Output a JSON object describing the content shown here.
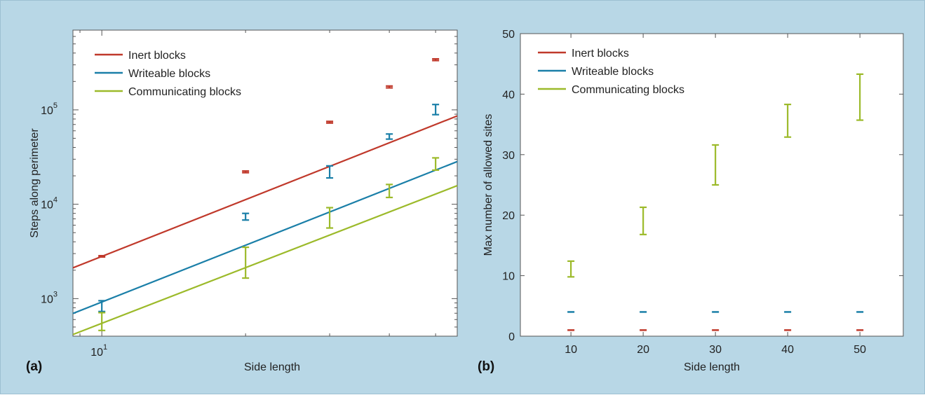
{
  "colors": {
    "background": "#b8d7e6",
    "inert": "#c0392b",
    "writeable": "#1a7fa8",
    "communicating": "#9cba2a"
  },
  "chart_data": [
    {
      "type": "line",
      "panel_label": "(a)",
      "xlabel": "Side length",
      "ylabel": "Steps along perimeter",
      "xscale": "log",
      "yscale": "log",
      "xlim": [
        8.7,
        55.5
      ],
      "ylim": [
        400,
        700000
      ],
      "x_tick_labels": [
        {
          "base": "10",
          "exp": "1",
          "value": 10
        }
      ],
      "y_tick_labels": [
        {
          "base": "10",
          "exp": "3",
          "value": 1000
        },
        {
          "base": "10",
          "exp": "4",
          "value": 10000
        },
        {
          "base": "10",
          "exp": "5",
          "value": 100000
        }
      ],
      "legend_position": "top-left",
      "series": [
        {
          "name": "Inert blocks",
          "color": "#c0392b",
          "fit": {
            "a": 28.0,
            "b": 2.0
          },
          "points": [
            {
              "x": 10,
              "y": 2800,
              "lo": 2760,
              "hi": 2850
            },
            {
              "x": 20,
              "y": 22000,
              "lo": 21600,
              "hi": 22500
            },
            {
              "x": 30,
              "y": 74000,
              "lo": 72500,
              "hi": 75500
            },
            {
              "x": 40,
              "y": 175000,
              "lo": 171000,
              "hi": 179000
            },
            {
              "x": 50,
              "y": 340000,
              "lo": 333000,
              "hi": 347000
            }
          ]
        },
        {
          "name": "Writeable blocks",
          "color": "#1a7fa8",
          "fit": {
            "a": 9.2,
            "b": 2.0
          },
          "points": [
            {
              "x": 10,
              "y": 840,
              "lo": 730,
              "hi": 950
            },
            {
              "x": 20,
              "y": 7300,
              "lo": 6800,
              "hi": 8000
            },
            {
              "x": 30,
              "y": 22500,
              "lo": 19000,
              "hi": 25500
            },
            {
              "x": 40,
              "y": 52000,
              "lo": 49000,
              "hi": 55500
            },
            {
              "x": 50,
              "y": 100000,
              "lo": 89000,
              "hi": 114000
            }
          ]
        },
        {
          "name": "Communicating blocks",
          "color": "#9cba2a",
          "fit": {
            "a": 6.0,
            "b": 1.96
          },
          "points": [
            {
              "x": 10,
              "y": 560,
              "lo": 460,
              "hi": 710
            },
            {
              "x": 20,
              "y": 2800,
              "lo": 1650,
              "hi": 3500
            },
            {
              "x": 30,
              "y": 7300,
              "lo": 5600,
              "hi": 9200
            },
            {
              "x": 40,
              "y": 14000,
              "lo": 11800,
              "hi": 16200
            },
            {
              "x": 50,
              "y": 26500,
              "lo": 23000,
              "hi": 31000
            }
          ]
        }
      ]
    },
    {
      "type": "scatter",
      "panel_label": "(b)",
      "xlabel": "Side length",
      "ylabel": "Max number of allowed sites",
      "xlim": [
        3,
        56
      ],
      "ylim": [
        0,
        50
      ],
      "x_ticks": [
        10,
        20,
        30,
        40,
        50
      ],
      "y_ticks": [
        0,
        10,
        20,
        30,
        40,
        50
      ],
      "legend_position": "top-left",
      "series": [
        {
          "name": "Inert blocks",
          "color": "#c0392b",
          "points": [
            {
              "x": 10,
              "y": 1,
              "lo": 1,
              "hi": 1
            },
            {
              "x": 20,
              "y": 1,
              "lo": 1,
              "hi": 1
            },
            {
              "x": 30,
              "y": 1,
              "lo": 1,
              "hi": 1
            },
            {
              "x": 40,
              "y": 1,
              "lo": 1,
              "hi": 1
            },
            {
              "x": 50,
              "y": 1,
              "lo": 1,
              "hi": 1
            }
          ]
        },
        {
          "name": "Writeable blocks",
          "color": "#1a7fa8",
          "points": [
            {
              "x": 10,
              "y": 4,
              "lo": 4,
              "hi": 4
            },
            {
              "x": 20,
              "y": 4,
              "lo": 4,
              "hi": 4
            },
            {
              "x": 30,
              "y": 4,
              "lo": 4,
              "hi": 4
            },
            {
              "x": 40,
              "y": 4,
              "lo": 4,
              "hi": 4
            },
            {
              "x": 50,
              "y": 4,
              "lo": 4,
              "hi": 4
            }
          ]
        },
        {
          "name": "Communicating blocks",
          "color": "#9cba2a",
          "points": [
            {
              "x": 10,
              "y": 11.1,
              "lo": 9.8,
              "hi": 12.4
            },
            {
              "x": 20,
              "y": 19.0,
              "lo": 16.8,
              "hi": 21.3
            },
            {
              "x": 30,
              "y": 28.3,
              "lo": 25.0,
              "hi": 31.6
            },
            {
              "x": 40,
              "y": 35.6,
              "lo": 32.9,
              "hi": 38.3
            },
            {
              "x": 50,
              "y": 39.5,
              "lo": 35.7,
              "hi": 43.3
            }
          ]
        }
      ]
    }
  ]
}
